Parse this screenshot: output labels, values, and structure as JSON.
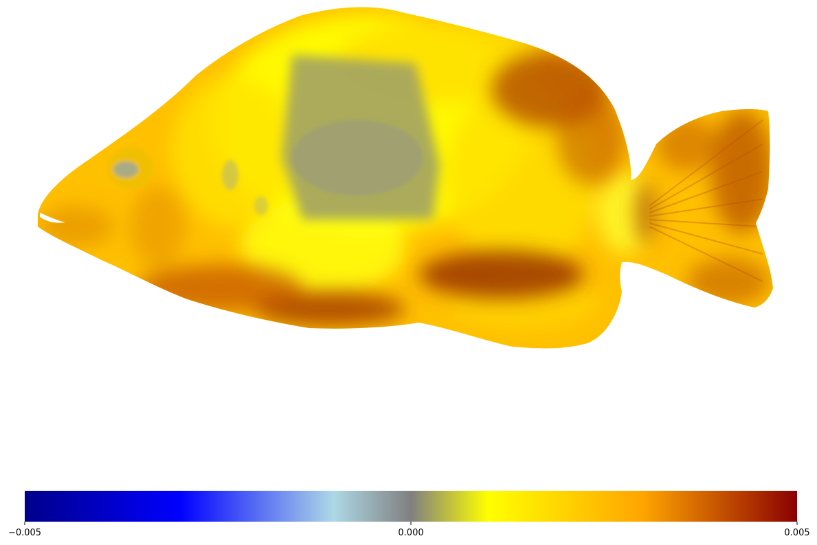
{
  "colorbar": {
    "min_label": "−0.005",
    "mid_label": "0.000",
    "max_label": "0.005",
    "min_value": -0.005,
    "mid_value": 0.0,
    "max_value": 0.005,
    "colormap_stops": [
      {
        "value": -0.005,
        "color": "#00008b"
      },
      {
        "value": -0.003,
        "color": "#0000ff"
      },
      {
        "value": -0.001,
        "color": "#add8e6"
      },
      {
        "value": 0.0,
        "color": "#808080"
      },
      {
        "value": 0.001,
        "color": "#ffff00"
      },
      {
        "value": 0.003,
        "color": "#ffa500"
      },
      {
        "value": 0.005,
        "color": "#8b0000"
      }
    ]
  },
  "colors": {
    "body_base": "#ffc000",
    "body_light": "#ffff00",
    "dark_patch": "#a33a00",
    "gray_patch": "#a6a660",
    "eye_gray": "#a9ab84",
    "background": "#ffffff"
  }
}
